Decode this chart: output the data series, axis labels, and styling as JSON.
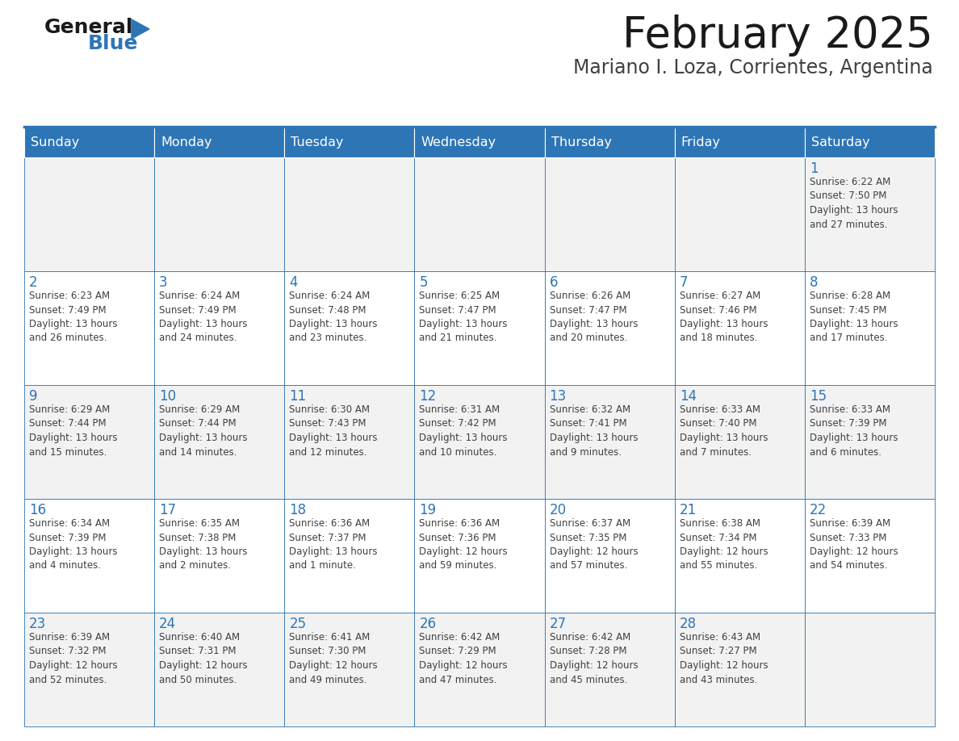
{
  "title": "February 2025",
  "subtitle": "Mariano I. Loza, Corrientes, Argentina",
  "header_color": "#2E75B6",
  "header_text_color": "#FFFFFF",
  "cell_bg_odd": "#F2F2F2",
  "cell_bg_even": "#FFFFFF",
  "border_color": "#2E75B6",
  "title_color": "#1A1A1A",
  "subtitle_color": "#404040",
  "day_number_color": "#2E75B6",
  "cell_text_color": "#404040",
  "logo_general_color": "#1A1A1A",
  "logo_blue_color": "#2E75B6",
  "logo_triangle_color": "#2E75B6",
  "days_of_week": [
    "Sunday",
    "Monday",
    "Tuesday",
    "Wednesday",
    "Thursday",
    "Friday",
    "Saturday"
  ],
  "weeks": [
    [
      {
        "day": null,
        "info": null
      },
      {
        "day": null,
        "info": null
      },
      {
        "day": null,
        "info": null
      },
      {
        "day": null,
        "info": null
      },
      {
        "day": null,
        "info": null
      },
      {
        "day": null,
        "info": null
      },
      {
        "day": 1,
        "info": "Sunrise: 6:22 AM\nSunset: 7:50 PM\nDaylight: 13 hours\nand 27 minutes."
      }
    ],
    [
      {
        "day": 2,
        "info": "Sunrise: 6:23 AM\nSunset: 7:49 PM\nDaylight: 13 hours\nand 26 minutes."
      },
      {
        "day": 3,
        "info": "Sunrise: 6:24 AM\nSunset: 7:49 PM\nDaylight: 13 hours\nand 24 minutes."
      },
      {
        "day": 4,
        "info": "Sunrise: 6:24 AM\nSunset: 7:48 PM\nDaylight: 13 hours\nand 23 minutes."
      },
      {
        "day": 5,
        "info": "Sunrise: 6:25 AM\nSunset: 7:47 PM\nDaylight: 13 hours\nand 21 minutes."
      },
      {
        "day": 6,
        "info": "Sunrise: 6:26 AM\nSunset: 7:47 PM\nDaylight: 13 hours\nand 20 minutes."
      },
      {
        "day": 7,
        "info": "Sunrise: 6:27 AM\nSunset: 7:46 PM\nDaylight: 13 hours\nand 18 minutes."
      },
      {
        "day": 8,
        "info": "Sunrise: 6:28 AM\nSunset: 7:45 PM\nDaylight: 13 hours\nand 17 minutes."
      }
    ],
    [
      {
        "day": 9,
        "info": "Sunrise: 6:29 AM\nSunset: 7:44 PM\nDaylight: 13 hours\nand 15 minutes."
      },
      {
        "day": 10,
        "info": "Sunrise: 6:29 AM\nSunset: 7:44 PM\nDaylight: 13 hours\nand 14 minutes."
      },
      {
        "day": 11,
        "info": "Sunrise: 6:30 AM\nSunset: 7:43 PM\nDaylight: 13 hours\nand 12 minutes."
      },
      {
        "day": 12,
        "info": "Sunrise: 6:31 AM\nSunset: 7:42 PM\nDaylight: 13 hours\nand 10 minutes."
      },
      {
        "day": 13,
        "info": "Sunrise: 6:32 AM\nSunset: 7:41 PM\nDaylight: 13 hours\nand 9 minutes."
      },
      {
        "day": 14,
        "info": "Sunrise: 6:33 AM\nSunset: 7:40 PM\nDaylight: 13 hours\nand 7 minutes."
      },
      {
        "day": 15,
        "info": "Sunrise: 6:33 AM\nSunset: 7:39 PM\nDaylight: 13 hours\nand 6 minutes."
      }
    ],
    [
      {
        "day": 16,
        "info": "Sunrise: 6:34 AM\nSunset: 7:39 PM\nDaylight: 13 hours\nand 4 minutes."
      },
      {
        "day": 17,
        "info": "Sunrise: 6:35 AM\nSunset: 7:38 PM\nDaylight: 13 hours\nand 2 minutes."
      },
      {
        "day": 18,
        "info": "Sunrise: 6:36 AM\nSunset: 7:37 PM\nDaylight: 13 hours\nand 1 minute."
      },
      {
        "day": 19,
        "info": "Sunrise: 6:36 AM\nSunset: 7:36 PM\nDaylight: 12 hours\nand 59 minutes."
      },
      {
        "day": 20,
        "info": "Sunrise: 6:37 AM\nSunset: 7:35 PM\nDaylight: 12 hours\nand 57 minutes."
      },
      {
        "day": 21,
        "info": "Sunrise: 6:38 AM\nSunset: 7:34 PM\nDaylight: 12 hours\nand 55 minutes."
      },
      {
        "day": 22,
        "info": "Sunrise: 6:39 AM\nSunset: 7:33 PM\nDaylight: 12 hours\nand 54 minutes."
      }
    ],
    [
      {
        "day": 23,
        "info": "Sunrise: 6:39 AM\nSunset: 7:32 PM\nDaylight: 12 hours\nand 52 minutes."
      },
      {
        "day": 24,
        "info": "Sunrise: 6:40 AM\nSunset: 7:31 PM\nDaylight: 12 hours\nand 50 minutes."
      },
      {
        "day": 25,
        "info": "Sunrise: 6:41 AM\nSunset: 7:30 PM\nDaylight: 12 hours\nand 49 minutes."
      },
      {
        "day": 26,
        "info": "Sunrise: 6:42 AM\nSunset: 7:29 PM\nDaylight: 12 hours\nand 47 minutes."
      },
      {
        "day": 27,
        "info": "Sunrise: 6:42 AM\nSunset: 7:28 PM\nDaylight: 12 hours\nand 45 minutes."
      },
      {
        "day": 28,
        "info": "Sunrise: 6:43 AM\nSunset: 7:27 PM\nDaylight: 12 hours\nand 43 minutes."
      },
      {
        "day": null,
        "info": null
      }
    ]
  ]
}
